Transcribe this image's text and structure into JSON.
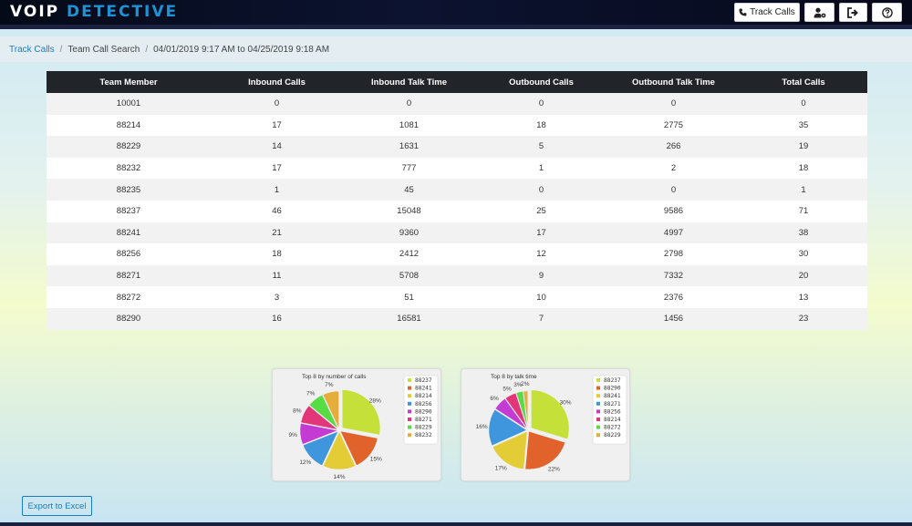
{
  "app": {
    "logo_part1": "V",
    "logo_o": "O",
    "logo_part2": "IP",
    "logo_part3": "DETECTIVE",
    "track_calls_label": "Track Calls"
  },
  "breadcrumb": {
    "link": "Track Calls",
    "page": "Team Call Search",
    "range": "04/01/2019 9:17 AM to 04/25/2019 9:18 AM"
  },
  "table": {
    "headers": [
      "Team Member",
      "Inbound Calls",
      "Inbound Talk Time",
      "Outbound Calls",
      "Outbound Talk Time",
      "Total Calls"
    ],
    "rows": [
      [
        "10001",
        "0",
        "0",
        "0",
        "0",
        "0"
      ],
      [
        "88214",
        "17",
        "1081",
        "18",
        "2775",
        "35"
      ],
      [
        "88229",
        "14",
        "1631",
        "5",
        "266",
        "19"
      ],
      [
        "88232",
        "17",
        "777",
        "1",
        "2",
        "18"
      ],
      [
        "88235",
        "1",
        "45",
        "0",
        "0",
        "1"
      ],
      [
        "88237",
        "46",
        "15048",
        "25",
        "9586",
        "71"
      ],
      [
        "88241",
        "21",
        "9360",
        "17",
        "4997",
        "38"
      ],
      [
        "88256",
        "18",
        "2412",
        "12",
        "2798",
        "30"
      ],
      [
        "88271",
        "11",
        "5708",
        "9",
        "7332",
        "20"
      ],
      [
        "88272",
        "3",
        "51",
        "10",
        "2376",
        "13"
      ],
      [
        "88290",
        "16",
        "16581",
        "7",
        "1456",
        "23"
      ]
    ]
  },
  "chart_data": [
    {
      "type": "pie",
      "title": "Top 8 by number of calls",
      "labels": [
        "88237",
        "88241",
        "88214",
        "88256",
        "88290",
        "88271",
        "88229",
        "88232"
      ],
      "values": [
        28,
        15,
        14,
        12,
        9,
        8,
        7,
        7
      ],
      "colors": [
        "#c6e03a",
        "#e2622b",
        "#e3cc36",
        "#3f96dc",
        "#c43bd3",
        "#e2357a",
        "#58dc46",
        "#e7ad3a"
      ],
      "legend_position": "right"
    },
    {
      "type": "pie",
      "title": "Top 8 by talk time",
      "labels": [
        "88237",
        "88290",
        "88241",
        "88271",
        "88256",
        "88214",
        "88272",
        "88229"
      ],
      "values": [
        30,
        22,
        17,
        16,
        6,
        5,
        3,
        2
      ],
      "colors": [
        "#c6e03a",
        "#e2622b",
        "#e3cc36",
        "#3f96dc",
        "#c43bd3",
        "#e2357a",
        "#58dc46",
        "#e7ad3a"
      ],
      "legend_position": "right"
    }
  ],
  "buttons": {
    "export_label": "Export to Excel"
  },
  "icons": {
    "track_calls": "phone-icon",
    "user_settings": "user-gear-icon",
    "logout": "sign-out-icon",
    "help": "question-circle-icon"
  }
}
